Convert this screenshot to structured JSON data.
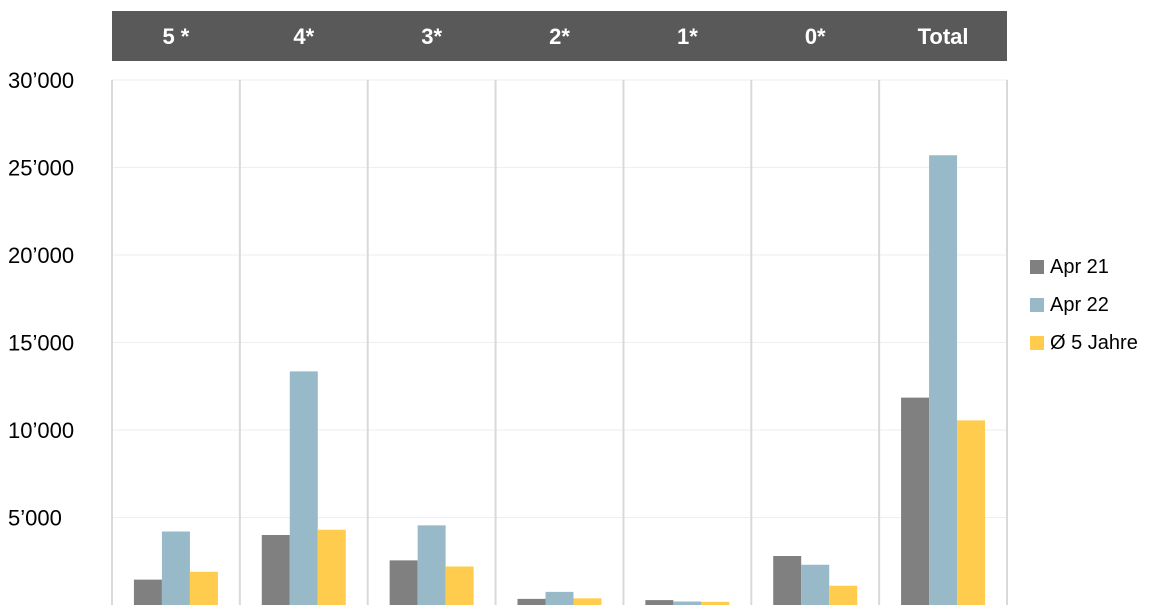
{
  "chart_data": {
    "type": "bar",
    "categories": [
      "5 *",
      "4*",
      "3*",
      "2*",
      "1*",
      "0*",
      "Total"
    ],
    "series": [
      {
        "name": "Apr 21",
        "color": "#808080",
        "values": [
          1450,
          4000,
          2550,
          350,
          280,
          2800,
          11850
        ]
      },
      {
        "name": "Apr 22",
        "color": "#98BAC8",
        "values": [
          4200,
          13350,
          4550,
          750,
          200,
          2300,
          25700
        ]
      },
      {
        "name": "Ø 5 Jahre",
        "color": "#FFCC4D",
        "values": [
          1900,
          4300,
          2200,
          380,
          180,
          1100,
          10550
        ]
      }
    ],
    "y_tick_labels": [
      "5’000",
      "10’000",
      "15’000",
      "20’000",
      "25’000",
      "30’000"
    ],
    "y_ticks": [
      5000,
      10000,
      15000,
      20000,
      25000,
      30000
    ],
    "ylim": [
      0,
      30000
    ],
    "grid": true,
    "legend_position": "right",
    "header_color": "#595959"
  }
}
